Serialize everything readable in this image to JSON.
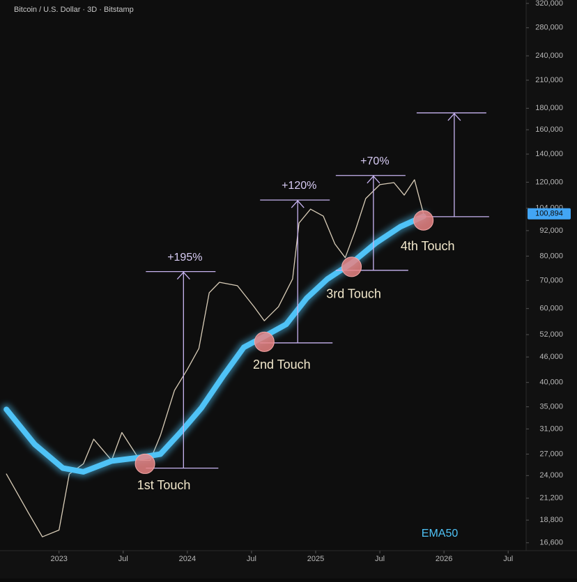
{
  "chart_data": {
    "type": "line",
    "title": "Bitcoin / U.S. Dollar · 3D · Bitstamp",
    "log": true,
    "xlim": [
      2022.54,
      2026.64
    ],
    "ylim": [
      15900,
      326000
    ],
    "xticks": [
      {
        "value": 2023,
        "label": "2023"
      },
      {
        "value": 2023.5,
        "label": "Jul"
      },
      {
        "value": 2024,
        "label": "2024"
      },
      {
        "value": 2024.5,
        "label": "Jul"
      },
      {
        "value": 2025,
        "label": "2025"
      },
      {
        "value": 2025.5,
        "label": "Jul"
      },
      {
        "value": 2026,
        "label": "2026"
      },
      {
        "value": 2026.5,
        "label": "Jul"
      }
    ],
    "yticks": [
      {
        "value": 16600,
        "label": "16,600"
      },
      {
        "value": 18800,
        "label": "18,800"
      },
      {
        "value": 21200,
        "label": "21,200"
      },
      {
        "value": 24000,
        "label": "24,000"
      },
      {
        "value": 27000,
        "label": "27,000"
      },
      {
        "value": 31000,
        "label": "31,000"
      },
      {
        "value": 35000,
        "label": "35,000"
      },
      {
        "value": 40000,
        "label": "40,000"
      },
      {
        "value": 46000,
        "label": "46,000"
      },
      {
        "value": 52000,
        "label": "52,000"
      },
      {
        "value": 60000,
        "label": "60,000"
      },
      {
        "value": 70000,
        "label": "70,000"
      },
      {
        "value": 80000,
        "label": "80,000"
      },
      {
        "value": 92000,
        "label": "92,000"
      },
      {
        "value": 104000,
        "label": "104,000"
      },
      {
        "value": 120000,
        "label": "120,000"
      },
      {
        "value": 140000,
        "label": "140,000"
      },
      {
        "value": 160000,
        "label": "160,000"
      },
      {
        "value": 180000,
        "label": "180,000"
      },
      {
        "value": 210000,
        "label": "210,000"
      },
      {
        "value": 240000,
        "label": "240,000"
      },
      {
        "value": 280000,
        "label": "280,000"
      },
      {
        "value": 320000,
        "label": "320,000"
      }
    ],
    "series": [
      {
        "color": "#d9cdb8",
        "x": [
          2022.59,
          2022.76,
          2022.87,
          2023.0,
          2023.08,
          2023.19,
          2023.27,
          2023.41,
          2023.49,
          2023.63,
          2023.71,
          2023.79,
          2023.9,
          2024.0,
          2024.09,
          2024.17,
          2024.25,
          2024.39,
          2024.52,
          2024.6,
          2024.71,
          2024.82,
          2024.87,
          2024.96,
          2025.06,
          2025.15,
          2025.23,
          2025.31,
          2025.39,
          2025.5,
          2025.61,
          2025.69,
          2025.77,
          2025.84
        ],
        "values": [
          24200,
          19600,
          17150,
          17800,
          24200,
          25600,
          29300,
          26100,
          30400,
          26100,
          26100,
          29900,
          38300,
          43000,
          48200,
          65400,
          69300,
          68000,
          60600,
          56100,
          60600,
          70600,
          95900,
          103500,
          99600,
          85500,
          79300,
          92300,
          109700,
          118400,
          119700,
          111800,
          121600,
          100894
        ]
      },
      {
        "name": "EMA50",
        "color": "#4fc3f7",
        "x": [
          2022.59,
          2022.81,
          2023.03,
          2023.19,
          2023.41,
          2023.63,
          2023.79,
          2023.95,
          2024.11,
          2024.28,
          2024.44,
          2024.6,
          2024.77,
          2024.93,
          2025.09,
          2025.28,
          2025.47,
          2025.66,
          2025.84
        ],
        "values": [
          34500,
          28500,
          25000,
          24500,
          26000,
          26500,
          27000,
          30500,
          34800,
          41500,
          48500,
          51500,
          55000,
          63500,
          70500,
          77000,
          86000,
          94000,
          99500
        ]
      }
    ],
    "price_label": {
      "value": 100894,
      "label": "100,894"
    },
    "measurements": [
      {
        "label": "+195%",
        "x": 2023.97,
        "from": 25000,
        "to": 73500
      },
      {
        "label": "+120%",
        "x": 2024.86,
        "from": 49700,
        "to": 108800
      },
      {
        "label": "+70%",
        "x": 2025.45,
        "from": 74000,
        "to": 124500
      },
      {
        "x": 2026.08,
        "from": 99300,
        "to": 175500
      }
    ],
    "touches": [
      {
        "label": "1st Touch",
        "x": 2023.67,
        "y": 25600
      },
      {
        "label": "2nd Touch",
        "x": 2024.6,
        "y": 50000
      },
      {
        "label": "3rd Touch",
        "x": 2025.28,
        "y": 75400
      },
      {
        "label": "4th Touch",
        "x": 2025.84,
        "y": 97300
      }
    ]
  }
}
